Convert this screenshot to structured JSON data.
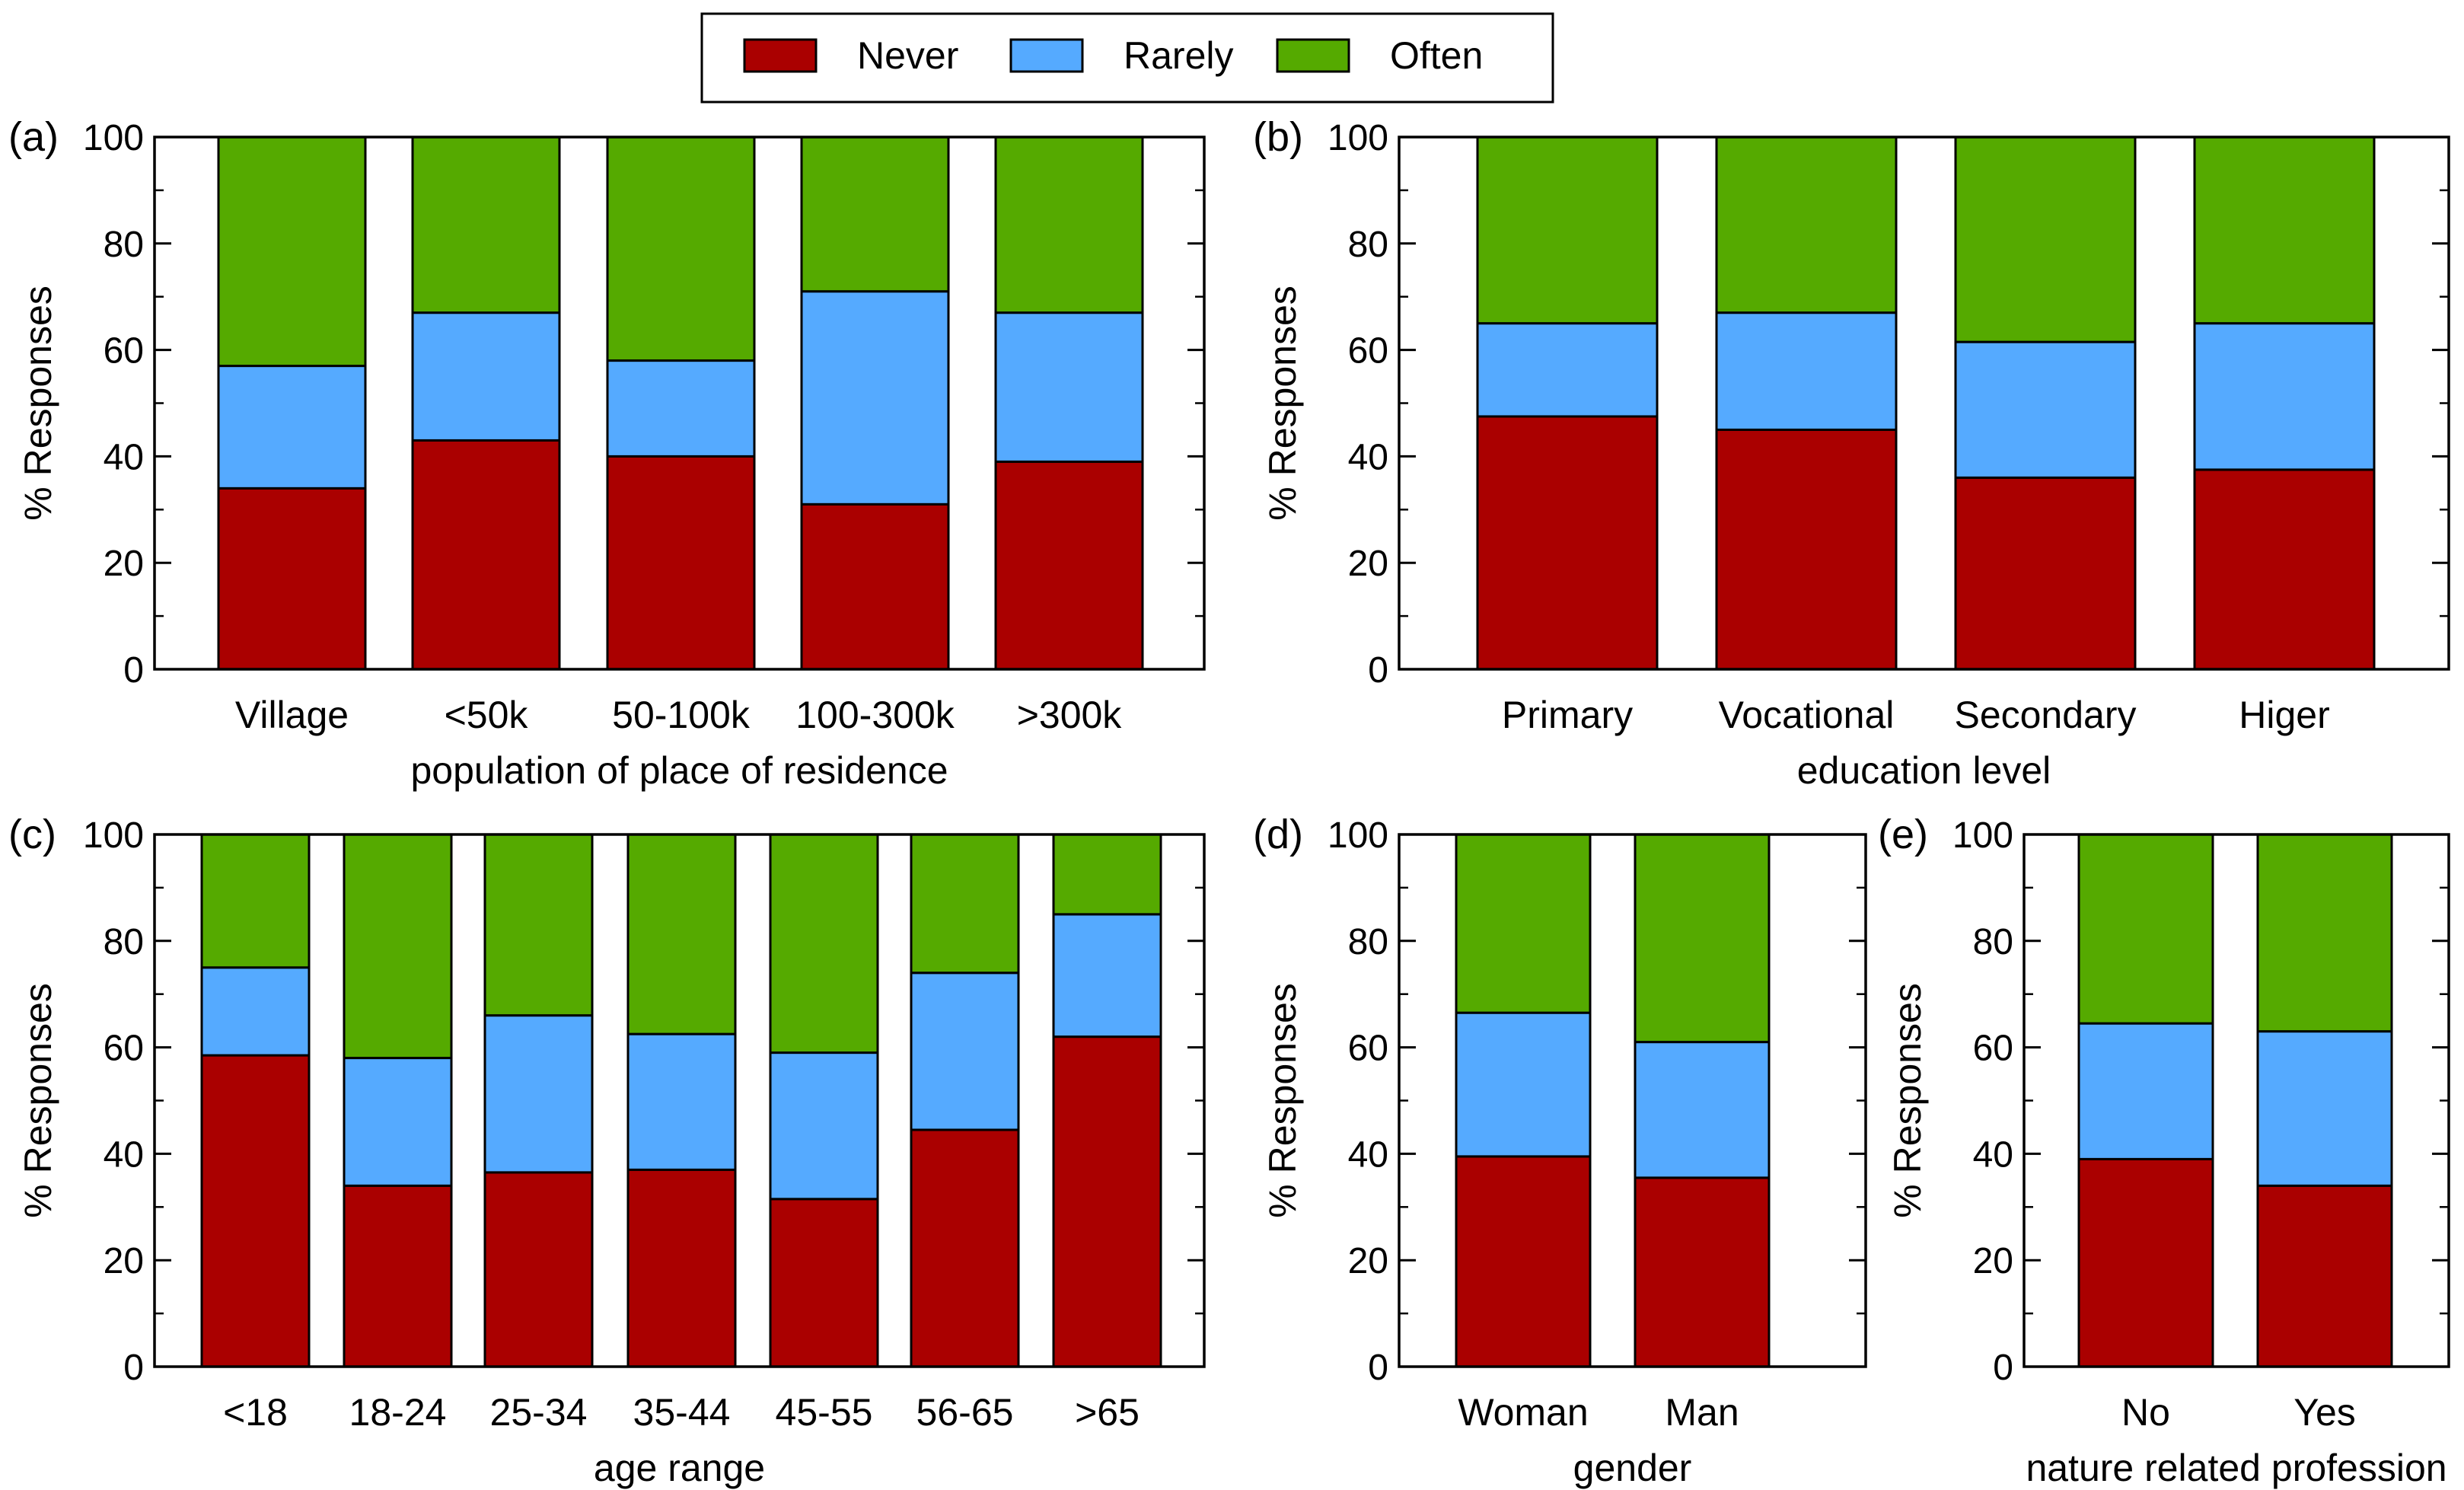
{
  "legend": {
    "placement": "top-center",
    "items": [
      {
        "label": "Never",
        "color": "#aa0000"
      },
      {
        "label": "Rarely",
        "color": "#55aaff"
      },
      {
        "label": "Often",
        "color": "#55aa00"
      }
    ]
  },
  "chart_data": [
    {
      "type": "bar",
      "stacked": true,
      "panel_label": "(a)",
      "xlabel": "population of place of residence",
      "ylabel": "% Responses",
      "ylim": [
        0,
        100
      ],
      "yticks": [
        0,
        20,
        40,
        60,
        80,
        100
      ],
      "grid": false,
      "categories": [
        "Village",
        "<50k",
        "50-100k",
        "100-300k",
        ">300k"
      ],
      "series": [
        {
          "name": "Never",
          "values": [
            34,
            43,
            40,
            31,
            39
          ]
        },
        {
          "name": "Rarely",
          "values": [
            23,
            24,
            18,
            40,
            28
          ]
        },
        {
          "name": "Often",
          "values": [
            43,
            33,
            42,
            29,
            33
          ]
        }
      ]
    },
    {
      "type": "bar",
      "stacked": true,
      "panel_label": "(b)",
      "xlabel": "education level",
      "ylabel": "% Responses",
      "ylim": [
        0,
        100
      ],
      "yticks": [
        0,
        20,
        40,
        60,
        80,
        100
      ],
      "grid": false,
      "categories": [
        "Primary",
        "Vocational",
        "Secondary",
        "Higer"
      ],
      "series": [
        {
          "name": "Never",
          "values": [
            47.5,
            45,
            36,
            37.5
          ]
        },
        {
          "name": "Rarely",
          "values": [
            17.5,
            22,
            25.5,
            27.5
          ]
        },
        {
          "name": "Often",
          "values": [
            35,
            33,
            38.5,
            35
          ]
        }
      ]
    },
    {
      "type": "bar",
      "stacked": true,
      "panel_label": "(c)",
      "xlabel": "age range",
      "ylabel": "% Responses",
      "ylim": [
        0,
        100
      ],
      "yticks": [
        0,
        20,
        40,
        60,
        80,
        100
      ],
      "grid": false,
      "categories": [
        "<18",
        "18-24",
        "25-34",
        "35-44",
        "45-55",
        "56-65",
        ">65"
      ],
      "series": [
        {
          "name": "Never",
          "values": [
            58.5,
            34,
            36.5,
            37,
            31.5,
            44.5,
            62
          ]
        },
        {
          "name": "Rarely",
          "values": [
            16.5,
            24,
            29.5,
            25.5,
            27.5,
            29.5,
            23
          ]
        },
        {
          "name": "Often",
          "values": [
            25,
            42,
            34,
            37.5,
            41,
            26,
            15
          ]
        }
      ]
    },
    {
      "type": "bar",
      "stacked": true,
      "panel_label": "(d)",
      "xlabel": "gender",
      "ylabel": "% Responses",
      "ylim": [
        0,
        100
      ],
      "yticks": [
        0,
        20,
        40,
        60,
        80,
        100
      ],
      "grid": false,
      "categories": [
        "Woman",
        "Man"
      ],
      "series": [
        {
          "name": "Never",
          "values": [
            39.5,
            35.5
          ]
        },
        {
          "name": "Rarely",
          "values": [
            27,
            25.5
          ]
        },
        {
          "name": "Often",
          "values": [
            33.5,
            39
          ]
        }
      ]
    },
    {
      "type": "bar",
      "stacked": true,
      "panel_label": "(e)",
      "xlabel": "nature related profession",
      "ylabel": "% Responses",
      "ylim": [
        0,
        100
      ],
      "yticks": [
        0,
        20,
        40,
        60,
        80,
        100
      ],
      "grid": false,
      "categories": [
        "No",
        "Yes"
      ],
      "series": [
        {
          "name": "Never",
          "values": [
            39,
            34
          ]
        },
        {
          "name": "Rarely",
          "values": [
            25.5,
            29
          ]
        },
        {
          "name": "Often",
          "values": [
            35.5,
            37
          ]
        }
      ]
    }
  ]
}
